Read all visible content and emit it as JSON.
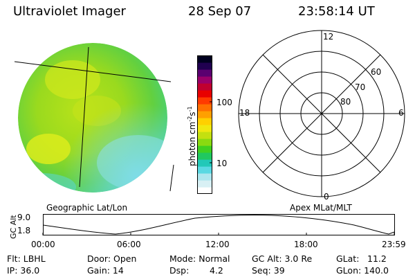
{
  "header": {
    "instrument": "Ultraviolet Imager",
    "date": "28 Sep 07",
    "time": "23:58:14 UT"
  },
  "left_panel": {
    "label": "Geographic Lat/Lon"
  },
  "right_panel": {
    "label": "Apex MLat/MLT",
    "mlt_labels": [
      "12",
      "18",
      "6",
      "0"
    ],
    "lat_labels": [
      "60",
      "70",
      "80"
    ]
  },
  "colorbar": {
    "unit_label": "photon cm",
    "unit_exp1": "-2",
    "unit_s": "s",
    "unit_exp2": "-1",
    "ticks": [
      "100",
      "10"
    ],
    "colors": [
      "#ffffff",
      "#d8f0f4",
      "#aee6ee",
      "#5ad8e2",
      "#22c8b8",
      "#20c860",
      "#40d020",
      "#8ada10",
      "#c4e010",
      "#f0e810",
      "#ffd000",
      "#ffa000",
      "#ff7000",
      "#ff3a00",
      "#e80000",
      "#c00030",
      "#9a006a",
      "#5a0070",
      "#200050",
      "#000020"
    ]
  },
  "altitude_plot": {
    "axis_label": "GC Alt",
    "y_ticks": [
      "9.0",
      "1.8"
    ],
    "x_ticks": [
      "00:00",
      "06:00",
      "12:00",
      "18:00",
      "23:59"
    ]
  },
  "info": {
    "flt": "Flt: LBHL",
    "ip": "IP: 36.0",
    "door": "Door: Open",
    "gain": "Gain: 14",
    "mode": "Mode: Normal",
    "dsp_label": "Dsp:",
    "dsp_value": "4.2",
    "gc_alt": "GC Alt: 3.0 Re",
    "seq": "Seq: 39",
    "glat_label": "GLat:",
    "glat_value": "11.2",
    "glon": "GLon: 140.0"
  }
}
